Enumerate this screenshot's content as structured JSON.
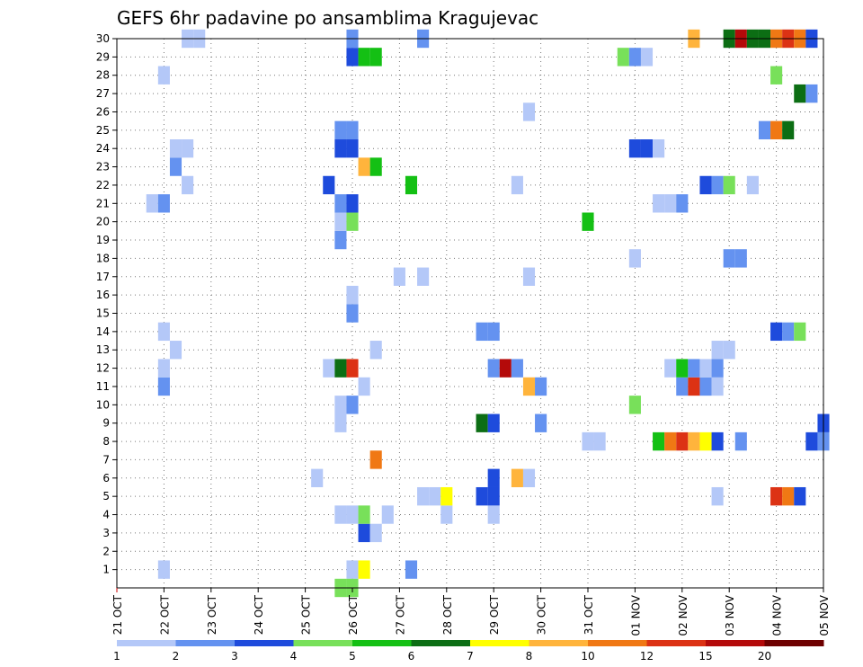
{
  "chart_data": {
    "type": "heatmap",
    "title": "GEFS 6hr padavine po ansamblima Kragujevac",
    "xlabel": "",
    "ylabel": "",
    "x_ticks": [
      "21 OCT",
      "22 OCT",
      "23 OCT",
      "24 OCT",
      "25 OCT",
      "26 OCT",
      "27 OCT",
      "28 OCT",
      "29 OCT",
      "30 OCT",
      "31 OCT",
      "01 NOV",
      "02 NOV",
      "03 NOV",
      "04 NOV",
      "05 NOV"
    ],
    "y_ticks": [
      1,
      2,
      3,
      4,
      5,
      6,
      7,
      8,
      9,
      10,
      11,
      12,
      13,
      14,
      15,
      16,
      17,
      18,
      19,
      20,
      21,
      22,
      23,
      24,
      25,
      26,
      27,
      28,
      29,
      30
    ],
    "x_range_days": [
      0,
      15
    ],
    "y_range_members": [
      0,
      30
    ],
    "grid": "dotted",
    "colorbar": {
      "labels": [
        "1",
        "2",
        "3",
        "4",
        "5",
        "6",
        "7",
        "8",
        "10",
        "12",
        "15",
        "20"
      ],
      "colors": [
        "#b4c8f8",
        "#6492f0",
        "#1e4bdc",
        "#78e05a",
        "#14c014",
        "#0c6e14",
        "#ffff00",
        "#ffb43c",
        "#f07814",
        "#dc3214",
        "#b40a0a",
        "#6e0000"
      ]
    },
    "cells": [
      {
        "day": 1.0,
        "member": 1,
        "value": 1.5
      },
      {
        "day": 5.0,
        "member": 1,
        "value": 1.5
      },
      {
        "day": 5.25,
        "member": 1,
        "value": 7.5
      },
      {
        "day": 6.25,
        "member": 1,
        "value": 2.5
      },
      {
        "day": 5.0,
        "member": 0,
        "value": 4.5
      },
      {
        "day": 4.75,
        "member": 0,
        "value": 4.5
      },
      {
        "day": 5.25,
        "member": 3,
        "value": 3.5
      },
      {
        "day": 5.5,
        "member": 3,
        "value": 1.5
      },
      {
        "day": 4.75,
        "member": 4,
        "value": 1.5
      },
      {
        "day": 5.0,
        "member": 4,
        "value": 1.5
      },
      {
        "day": 5.25,
        "member": 4,
        "value": 4.5
      },
      {
        "day": 5.75,
        "member": 4,
        "value": 1.5
      },
      {
        "day": 7.0,
        "member": 4,
        "value": 1.5
      },
      {
        "day": 8.0,
        "member": 4,
        "value": 1.5
      },
      {
        "day": 6.5,
        "member": 5,
        "value": 1.5
      },
      {
        "day": 6.75,
        "member": 5,
        "value": 1.5
      },
      {
        "day": 7.0,
        "member": 5,
        "value": 7.5
      },
      {
        "day": 7.75,
        "member": 5,
        "value": 3.5
      },
      {
        "day": 8.0,
        "member": 5,
        "value": 3.5
      },
      {
        "day": 12.75,
        "member": 5,
        "value": 1.5
      },
      {
        "day": 14.0,
        "member": 5,
        "value": 13.5
      },
      {
        "day": 14.25,
        "member": 5,
        "value": 11
      },
      {
        "day": 14.5,
        "member": 5,
        "value": 3.5
      },
      {
        "day": 4.25,
        "member": 6,
        "value": 1.5
      },
      {
        "day": 8.0,
        "member": 6,
        "value": 3.5
      },
      {
        "day": 8.5,
        "member": 6,
        "value": 9
      },
      {
        "day": 8.75,
        "member": 6,
        "value": 1.5
      },
      {
        "day": 5.5,
        "member": 7,
        "value": 11
      },
      {
        "day": 10.0,
        "member": 8,
        "value": 1.5
      },
      {
        "day": 10.25,
        "member": 8,
        "value": 1.5
      },
      {
        "day": 11.5,
        "member": 8,
        "value": 5.5
      },
      {
        "day": 11.75,
        "member": 8,
        "value": 11
      },
      {
        "day": 12.0,
        "member": 8,
        "value": 13.5
      },
      {
        "day": 12.25,
        "member": 8,
        "value": 9
      },
      {
        "day": 12.5,
        "member": 8,
        "value": 7.5
      },
      {
        "day": 12.75,
        "member": 8,
        "value": 3.5
      },
      {
        "day": 13.25,
        "member": 8,
        "value": 2.5
      },
      {
        "day": 14.75,
        "member": 8,
        "value": 3.5
      },
      {
        "day": 15.0,
        "member": 8,
        "value": 2.5
      },
      {
        "day": 4.75,
        "member": 9,
        "value": 1.5
      },
      {
        "day": 7.75,
        "member": 9,
        "value": 6.5
      },
      {
        "day": 8.0,
        "member": 9,
        "value": 3.5
      },
      {
        "day": 9.0,
        "member": 9,
        "value": 2.5
      },
      {
        "day": 15.0,
        "member": 9,
        "value": 3.5
      },
      {
        "day": 4.75,
        "member": 10,
        "value": 1.5
      },
      {
        "day": 5.0,
        "member": 10,
        "value": 2.5
      },
      {
        "day": 11.0,
        "member": 10,
        "value": 4.5
      },
      {
        "day": 1.0,
        "member": 11,
        "value": 2.5
      },
      {
        "day": 5.25,
        "member": 11,
        "value": 1.5
      },
      {
        "day": 8.75,
        "member": 11,
        "value": 9
      },
      {
        "day": 9.0,
        "member": 11,
        "value": 2.5
      },
      {
        "day": 12.0,
        "member": 11,
        "value": 2.5
      },
      {
        "day": 12.25,
        "member": 11,
        "value": 13.5
      },
      {
        "day": 12.5,
        "member": 11,
        "value": 2.5
      },
      {
        "day": 12.75,
        "member": 11,
        "value": 1.5
      },
      {
        "day": 1.0,
        "member": 12,
        "value": 1.5
      },
      {
        "day": 4.5,
        "member": 12,
        "value": 1.5
      },
      {
        "day": 4.75,
        "member": 12,
        "value": 6.5
      },
      {
        "day": 5.0,
        "member": 12,
        "value": 13.5
      },
      {
        "day": 8.0,
        "member": 12,
        "value": 2.5
      },
      {
        "day": 8.25,
        "member": 12,
        "value": 17
      },
      {
        "day": 8.5,
        "member": 12,
        "value": 2.5
      },
      {
        "day": 11.75,
        "member": 12,
        "value": 1.5
      },
      {
        "day": 12.0,
        "member": 12,
        "value": 5.5
      },
      {
        "day": 12.25,
        "member": 12,
        "value": 2.5
      },
      {
        "day": 12.5,
        "member": 12,
        "value": 1.5
      },
      {
        "day": 12.75,
        "member": 12,
        "value": 2.5
      },
      {
        "day": 1.25,
        "member": 13,
        "value": 1.5
      },
      {
        "day": 5.5,
        "member": 13,
        "value": 1.5
      },
      {
        "day": 12.75,
        "member": 13,
        "value": 1.5
      },
      {
        "day": 13.0,
        "member": 13,
        "value": 1.5
      },
      {
        "day": 1.0,
        "member": 14,
        "value": 1.5
      },
      {
        "day": 7.75,
        "member": 14,
        "value": 2.5
      },
      {
        "day": 8.0,
        "member": 14,
        "value": 2.5
      },
      {
        "day": 14.0,
        "member": 14,
        "value": 3.5
      },
      {
        "day": 14.25,
        "member": 14,
        "value": 2.5
      },
      {
        "day": 14.5,
        "member": 14,
        "value": 4.5
      },
      {
        "day": 5.0,
        "member": 15,
        "value": 2.5
      },
      {
        "day": 5.0,
        "member": 16,
        "value": 1.5
      },
      {
        "day": 6.0,
        "member": 17,
        "value": 1.5
      },
      {
        "day": 6.5,
        "member": 17,
        "value": 1.5
      },
      {
        "day": 8.75,
        "member": 17,
        "value": 1.5
      },
      {
        "day": 11.0,
        "member": 18,
        "value": 1.5
      },
      {
        "day": 13.0,
        "member": 18,
        "value": 2.5
      },
      {
        "day": 13.25,
        "member": 18,
        "value": 2.5
      },
      {
        "day": 4.75,
        "member": 19,
        "value": 2.5
      },
      {
        "day": 4.75,
        "member": 20,
        "value": 1.5
      },
      {
        "day": 5.0,
        "member": 20,
        "value": 4.5
      },
      {
        "day": 10.0,
        "member": 20,
        "value": 5.5
      },
      {
        "day": 0.75,
        "member": 21,
        "value": 1.5
      },
      {
        "day": 1.0,
        "member": 21,
        "value": 2.5
      },
      {
        "day": 4.75,
        "member": 21,
        "value": 2.5
      },
      {
        "day": 5.0,
        "member": 21,
        "value": 3.5
      },
      {
        "day": 11.5,
        "member": 21,
        "value": 1.5
      },
      {
        "day": 11.75,
        "member": 21,
        "value": 1.5
      },
      {
        "day": 12.0,
        "member": 21,
        "value": 2.5
      },
      {
        "day": 1.5,
        "member": 22,
        "value": 1.5
      },
      {
        "day": 4.5,
        "member": 22,
        "value": 3.5
      },
      {
        "day": 6.25,
        "member": 22,
        "value": 5.5
      },
      {
        "day": 8.5,
        "member": 22,
        "value": 1.5
      },
      {
        "day": 12.5,
        "member": 22,
        "value": 3.5
      },
      {
        "day": 12.75,
        "member": 22,
        "value": 2.5
      },
      {
        "day": 13.0,
        "member": 22,
        "value": 4.5
      },
      {
        "day": 13.5,
        "member": 22,
        "value": 1.5
      },
      {
        "day": 1.25,
        "member": 23,
        "value": 2.5
      },
      {
        "day": 5.25,
        "member": 23,
        "value": 9
      },
      {
        "day": 5.5,
        "member": 23,
        "value": 5.5
      },
      {
        "day": 1.25,
        "member": 24,
        "value": 1.5
      },
      {
        "day": 1.5,
        "member": 24,
        "value": 1.5
      },
      {
        "day": 4.75,
        "member": 24,
        "value": 3.5
      },
      {
        "day": 5.0,
        "member": 24,
        "value": 3.5
      },
      {
        "day": 11.0,
        "member": 24,
        "value": 3.5
      },
      {
        "day": 11.25,
        "member": 24,
        "value": 3.5
      },
      {
        "day": 11.5,
        "member": 24,
        "value": 1.5
      },
      {
        "day": 4.75,
        "member": 25,
        "value": 2.5
      },
      {
        "day": 5.0,
        "member": 25,
        "value": 2.5
      },
      {
        "day": 13.75,
        "member": 25,
        "value": 2.5
      },
      {
        "day": 14.0,
        "member": 25,
        "value": 11
      },
      {
        "day": 14.25,
        "member": 25,
        "value": 6.5
      },
      {
        "day": 8.75,
        "member": 26,
        "value": 1.5
      },
      {
        "day": 14.5,
        "member": 27,
        "value": 6.5
      },
      {
        "day": 14.75,
        "member": 27,
        "value": 2.5
      },
      {
        "day": 1.0,
        "member": 28,
        "value": 1.5
      },
      {
        "day": 14.0,
        "member": 28,
        "value": 4.5
      },
      {
        "day": 5.0,
        "member": 29,
        "value": 3.5
      },
      {
        "day": 5.25,
        "member": 29,
        "value": 5.5
      },
      {
        "day": 5.5,
        "member": 29,
        "value": 5.5
      },
      {
        "day": 10.75,
        "member": 29,
        "value": 4.5
      },
      {
        "day": 11.0,
        "member": 29,
        "value": 2.5
      },
      {
        "day": 11.25,
        "member": 29,
        "value": 1.5
      },
      {
        "day": 1.5,
        "member": 30,
        "value": 1.5
      },
      {
        "day": 1.75,
        "member": 30,
        "value": 1.5
      },
      {
        "day": 5.0,
        "member": 30,
        "value": 2.5
      },
      {
        "day": 6.5,
        "member": 30,
        "value": 2.5
      },
      {
        "day": 12.25,
        "member": 30,
        "value": 9
      },
      {
        "day": 13.0,
        "member": 30,
        "value": 6.5
      },
      {
        "day": 13.25,
        "member": 30,
        "value": 17
      },
      {
        "day": 13.5,
        "member": 30,
        "value": 6.5
      },
      {
        "day": 13.75,
        "member": 30,
        "value": 6.5
      },
      {
        "day": 14.0,
        "member": 30,
        "value": 11
      },
      {
        "day": 14.25,
        "member": 30,
        "value": 13.5
      },
      {
        "day": 14.5,
        "member": 30,
        "value": 11
      },
      {
        "day": 14.75,
        "member": 30,
        "value": 3.5
      }
    ]
  }
}
